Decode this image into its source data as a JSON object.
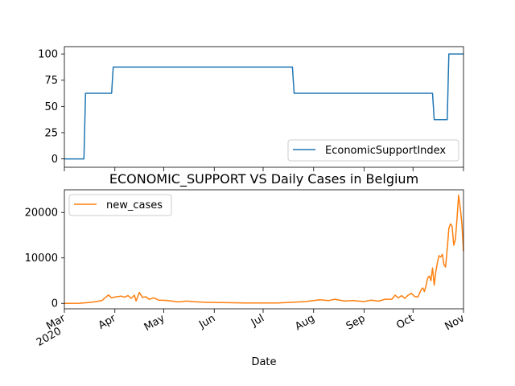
{
  "chart_data": [
    {
      "type": "line",
      "title": "",
      "xlabel": "",
      "ylabel": "",
      "xlim": [
        "2020-03-01",
        "2020-11-01"
      ],
      "ylim": [
        -8,
        107
      ],
      "yticks": [
        0,
        25,
        50,
        75,
        100
      ],
      "legend": "lower-right",
      "grid": false,
      "series": [
        {
          "name": "EconomicSupportIndex",
          "color": "#1f77b4",
          "x": [
            "2020-03-01",
            "2020-03-13",
            "2020-03-14",
            "2020-03-30",
            "2020-03-31",
            "2020-07-19",
            "2020-07-20",
            "2020-10-13",
            "2020-10-14",
            "2020-10-22",
            "2020-10-23",
            "2020-11-01"
          ],
          "y": [
            0,
            0,
            62.5,
            62.5,
            87.5,
            87.5,
            62.5,
            62.5,
            37.5,
            37.5,
            100,
            100
          ]
        }
      ]
    },
    {
      "type": "line",
      "title": "ECONOMIC_SUPPORT VS Daily Cases in Belgium",
      "xlabel": "Date",
      "ylabel": "",
      "xlim": [
        "2020-03-01",
        "2020-11-01"
      ],
      "ylim": [
        -1200,
        25000
      ],
      "yticks": [
        0,
        10000,
        20000
      ],
      "xticks": [
        {
          "date": "2020-03-01",
          "label": "Mar",
          "year": "2020"
        },
        {
          "date": "2020-04-01",
          "label": "Apr"
        },
        {
          "date": "2020-05-01",
          "label": "May"
        },
        {
          "date": "2020-06-01",
          "label": "Jun"
        },
        {
          "date": "2020-07-01",
          "label": "Jul"
        },
        {
          "date": "2020-08-01",
          "label": "Aug"
        },
        {
          "date": "2020-09-01",
          "label": "Sep"
        },
        {
          "date": "2020-10-01",
          "label": "Oct"
        },
        {
          "date": "2020-11-01",
          "label": "Nov"
        }
      ],
      "legend": "upper-left",
      "grid": false,
      "series": [
        {
          "name": "new_cases",
          "color": "#ff7f0e",
          "x": [
            "2020-03-01",
            "2020-03-10",
            "2020-03-15",
            "2020-03-20",
            "2020-03-24",
            "2020-03-27",
            "2020-03-28",
            "2020-03-30",
            "2020-04-02",
            "2020-04-05",
            "2020-04-07",
            "2020-04-09",
            "2020-04-11",
            "2020-04-13",
            "2020-04-14",
            "2020-04-16",
            "2020-04-18",
            "2020-04-20",
            "2020-04-22",
            "2020-04-25",
            "2020-04-28",
            "2020-05-02",
            "2020-05-06",
            "2020-05-10",
            "2020-05-15",
            "2020-05-20",
            "2020-05-25",
            "2020-06-01",
            "2020-06-10",
            "2020-06-20",
            "2020-07-01",
            "2020-07-10",
            "2020-07-20",
            "2020-07-27",
            "2020-08-01",
            "2020-08-05",
            "2020-08-10",
            "2020-08-14",
            "2020-08-20",
            "2020-08-25",
            "2020-09-01",
            "2020-09-05",
            "2020-09-10",
            "2020-09-14",
            "2020-09-18",
            "2020-09-20",
            "2020-09-22",
            "2020-09-24",
            "2020-09-26",
            "2020-09-28",
            "2020-09-30",
            "2020-10-02",
            "2020-10-04",
            "2020-10-06",
            "2020-10-07",
            "2020-10-08",
            "2020-10-09",
            "2020-10-10",
            "2020-10-11",
            "2020-10-12",
            "2020-10-13",
            "2020-10-14",
            "2020-10-15",
            "2020-10-16",
            "2020-10-17",
            "2020-10-18",
            "2020-10-19",
            "2020-10-20",
            "2020-10-21",
            "2020-10-22",
            "2020-10-23",
            "2020-10-24",
            "2020-10-25",
            "2020-10-26",
            "2020-10-27",
            "2020-10-28",
            "2020-10-29",
            "2020-10-30",
            "2020-10-31",
            "2020-11-01"
          ],
          "y": [
            0,
            20,
            150,
            350,
            600,
            1500,
            1850,
            1200,
            1450,
            1600,
            1350,
            1700,
            1100,
            1800,
            500,
            2400,
            1300,
            1450,
            900,
            1200,
            700,
            650,
            500,
            300,
            500,
            350,
            250,
            200,
            150,
            100,
            100,
            80,
            250,
            400,
            600,
            800,
            600,
            900,
            500,
            600,
            400,
            700,
            500,
            900,
            900,
            1800,
            1200,
            1700,
            1100,
            1800,
            2200,
            1500,
            1400,
            3000,
            3400,
            2600,
            3900,
            5600,
            6000,
            5000,
            7800,
            4000,
            7000,
            9000,
            10500,
            10200,
            10800,
            8500,
            8000,
            12000,
            16500,
            17500,
            17000,
            12800,
            14000,
            18500,
            23800,
            21000,
            17500,
            11500
          ]
        }
      ]
    }
  ]
}
